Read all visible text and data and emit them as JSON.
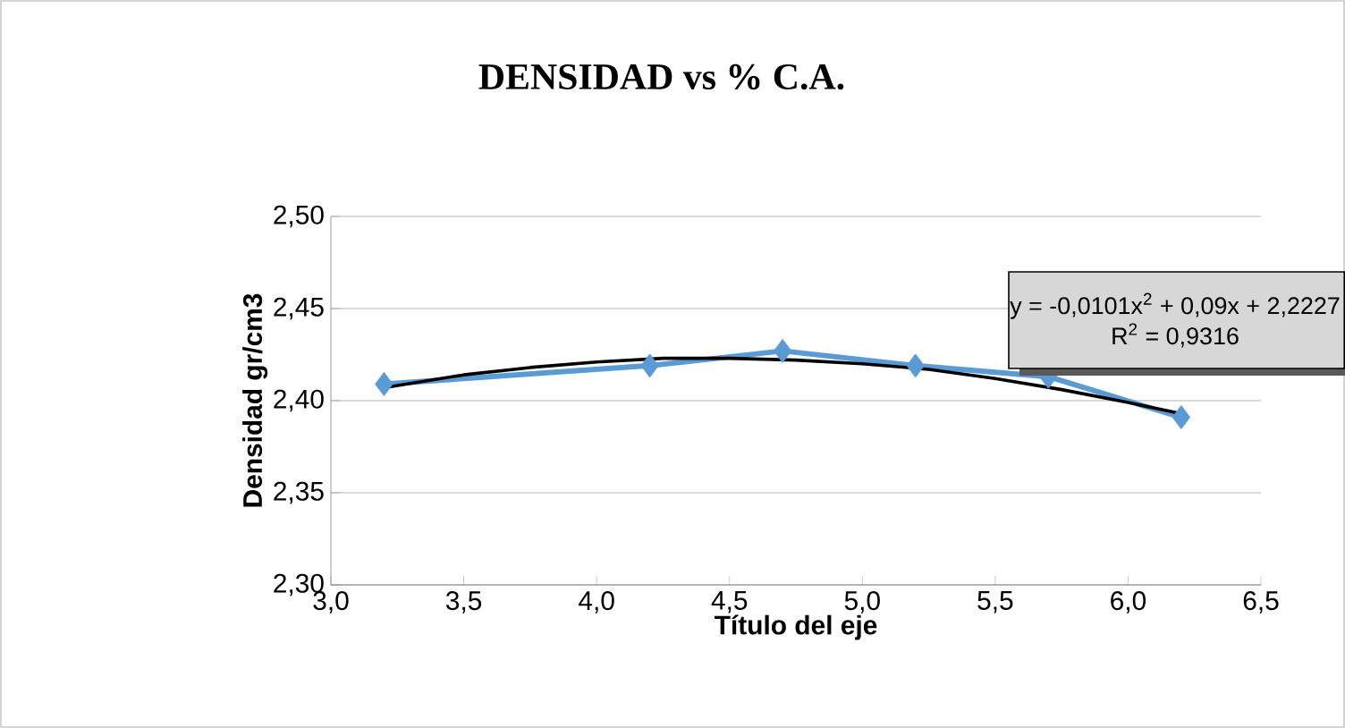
{
  "chart_data": {
    "type": "line",
    "title": "DENSIDAD vs % C.A.",
    "xlabel": "Título del eje",
    "ylabel": "Densidad gr/cm3",
    "series": [
      {
        "color": "#5b9bd5",
        "x": [
          3.2,
          4.2,
          4.7,
          5.2,
          5.7,
          6.2
        ],
        "values": [
          2.409,
          2.419,
          2.427,
          2.419,
          2.413,
          2.391
        ],
        "marker": "diamond"
      },
      {
        "color": "#000000",
        "x": [
          3.2,
          3.5,
          3.75,
          4.0,
          4.25,
          4.5,
          4.75,
          5.0,
          5.25,
          5.5,
          5.75,
          6.0,
          6.2
        ],
        "values": [
          2.407,
          2.414,
          2.418,
          2.421,
          2.423,
          2.423,
          2.422,
          2.42,
          2.417,
          2.412,
          2.406,
          2.399,
          2.393
        ],
        "marker": "none"
      }
    ],
    "xlim": [
      3.0,
      6.5
    ],
    "xticks": [
      {
        "value": 3.0,
        "label": "3,0"
      },
      {
        "value": 3.5,
        "label": "3,5"
      },
      {
        "value": 4.0,
        "label": "4,0"
      },
      {
        "value": 4.5,
        "label": "4,5"
      },
      {
        "value": 5.0,
        "label": "5,0"
      },
      {
        "value": 5.5,
        "label": "5,5"
      },
      {
        "value": 6.0,
        "label": "6,0"
      },
      {
        "value": 6.5,
        "label": "6,5"
      }
    ],
    "ylim": [
      2.3,
      2.5
    ],
    "yticks": [
      {
        "value": 2.3,
        "label": "2,30"
      },
      {
        "value": 2.35,
        "label": "2,35"
      },
      {
        "value": 2.4,
        "label": "2,40"
      },
      {
        "value": 2.45,
        "label": "2,45"
      },
      {
        "value": 2.5,
        "label": "2,50"
      }
    ],
    "grid": "y",
    "line_style": "solid",
    "annotations": [
      "y = -0,0101x$^{2}$ + 0,09x + 2,2227",
      "R$^{2}$ = 0,9316"
    ]
  }
}
